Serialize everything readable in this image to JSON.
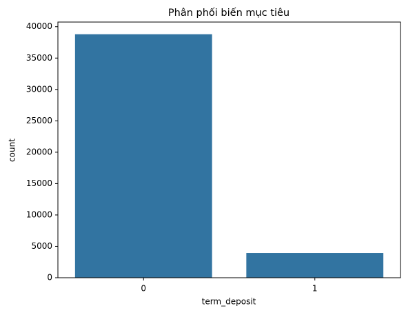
{
  "chart_data": {
    "type": "bar",
    "title": "Phân phối biến mục tiêu",
    "x_label": "term_deposit",
    "y_label": "count",
    "categories": [
      "0",
      "1"
    ],
    "values": [
      38800,
      3950
    ],
    "color": "#3274a1",
    "ylim": [
      0,
      40740
    ],
    "yticks": [
      0,
      5000,
      10000,
      15000,
      20000,
      25000,
      30000,
      35000,
      40000
    ],
    "grid": false
  }
}
